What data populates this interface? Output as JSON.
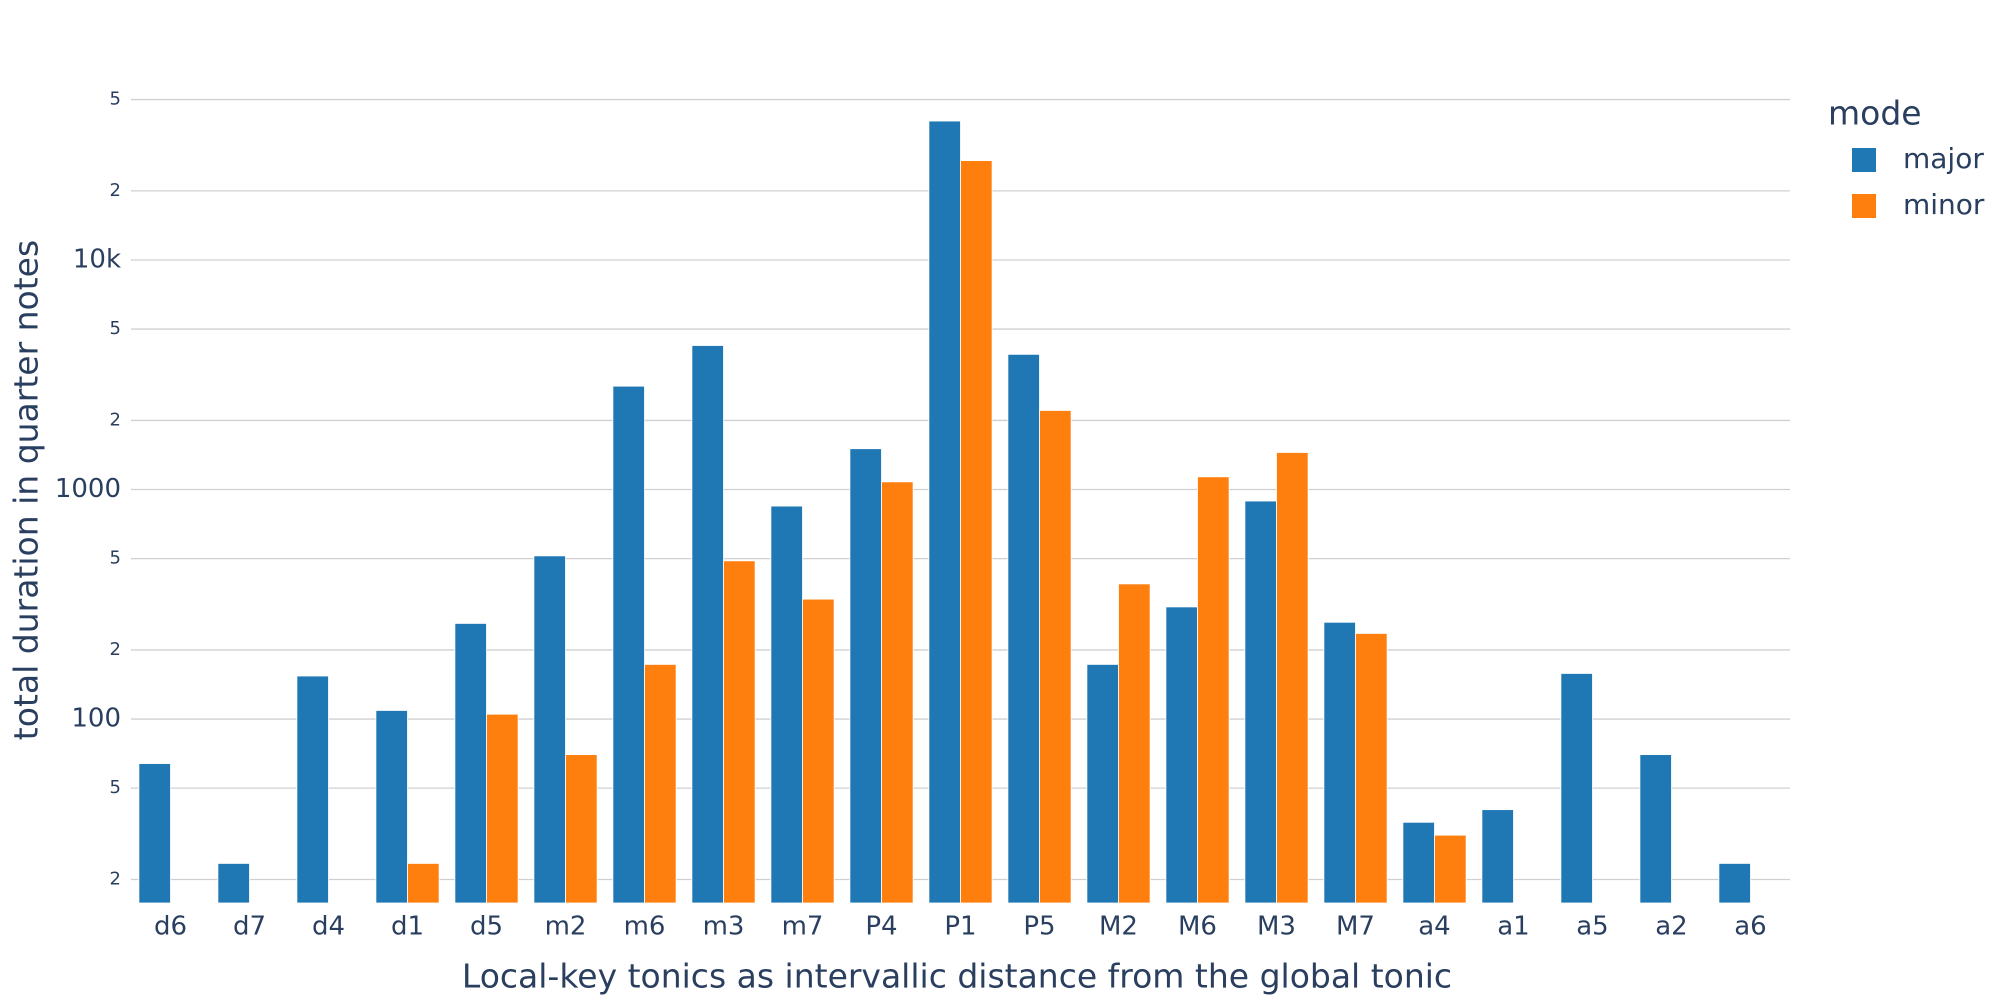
{
  "chart_data": {
    "type": "bar",
    "log_y": true,
    "grid": true,
    "legend": "right",
    "xlabel": "Local-key tonics as intervallic distance from the global tonic",
    "ylabel": "total duration in quarter notes",
    "legend_title": "mode",
    "categories": [
      "d6",
      "d7",
      "d4",
      "d1",
      "d5",
      "m2",
      "m6",
      "m3",
      "m7",
      "P4",
      "P1",
      "P5",
      "M2",
      "M6",
      "M3",
      "M7",
      "a4",
      "a1",
      "a5",
      "a2",
      "a6"
    ],
    "series": [
      {
        "name": "major",
        "color": "#1f77b4",
        "values": [
          64,
          23.5,
          154,
          109,
          261,
          514,
          2820,
          4240,
          847,
          1506,
          40300,
          3880,
          173,
          308,
          891,
          264,
          35.5,
          40.3,
          158,
          70,
          23.5
        ]
      },
      {
        "name": "minor",
        "color": "#ff7f0e",
        "values": [
          null,
          null,
          null,
          23.5,
          105,
          70,
          173,
          489,
          333,
          1080,
          27100,
          2210,
          388,
          1136,
          1450,
          236,
          31.2,
          null,
          null,
          null,
          null
        ]
      }
    ],
    "ylim": [
      15.8,
      63000
    ],
    "yticks": [
      {
        "value": 20,
        "label": "2"
      },
      {
        "value": 50,
        "label": "5"
      },
      100,
      {
        "value": 200,
        "label": "2"
      },
      {
        "value": 500,
        "label": "5"
      },
      1000,
      {
        "value": 2000,
        "label": "2"
      },
      {
        "value": 5000,
        "label": "5"
      },
      {
        "value": 10000,
        "label": "10k"
      },
      {
        "value": 20000,
        "label": "2"
      },
      {
        "value": 50000,
        "label": "5"
      }
    ]
  }
}
